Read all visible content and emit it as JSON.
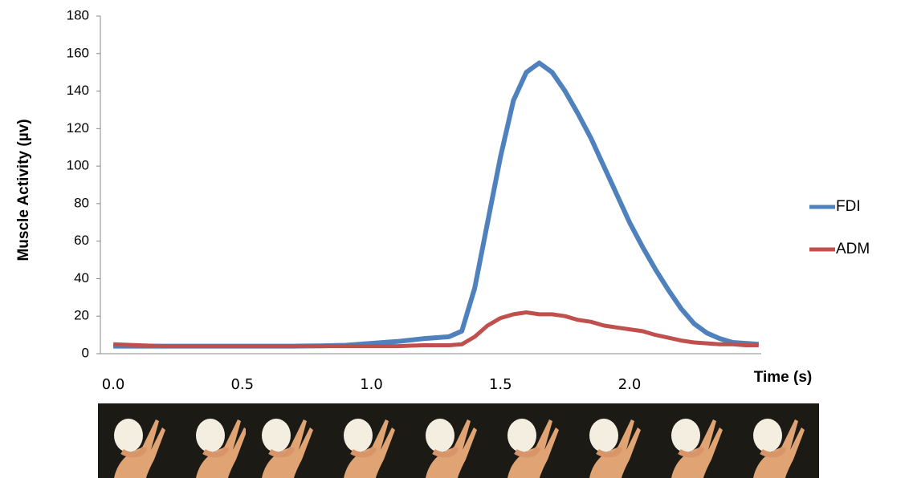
{
  "chart_data": {
    "type": "line",
    "y_label": "Muscle Activity (µv)",
    "x_label": "Time (s)",
    "x": [
      0,
      0.1,
      0.2,
      0.3,
      0.4,
      0.5,
      0.6,
      0.7,
      0.8,
      0.9,
      1.0,
      1.1,
      1.2,
      1.3,
      1.35,
      1.4,
      1.45,
      1.5,
      1.55,
      1.6,
      1.65,
      1.7,
      1.75,
      1.8,
      1.85,
      1.9,
      1.95,
      2.0,
      2.05,
      2.1,
      2.15,
      2.2,
      2.25,
      2.3,
      2.35,
      2.4,
      2.45,
      2.5
    ],
    "series": [
      {
        "name": "FDI",
        "color": "#4f81bd",
        "values": [
          4,
          4,
          4,
          4,
          4,
          4,
          4,
          4,
          4.2,
          4.5,
          5.5,
          6.5,
          8,
          9,
          12,
          35,
          70,
          105,
          135,
          150,
          155,
          150,
          140,
          128,
          115,
          100,
          85,
          70,
          57,
          45,
          34,
          24,
          16,
          11,
          8,
          6,
          5.5,
          5
        ]
      },
      {
        "name": "ADM",
        "color": "#c0504d",
        "values": [
          5,
          4.5,
          4,
          4,
          4,
          4,
          4,
          4,
          4,
          4,
          4,
          4,
          4.5,
          4.5,
          5,
          9,
          15,
          19,
          21,
          22,
          21,
          21,
          20,
          18,
          17,
          15,
          14,
          13,
          12,
          10,
          8.5,
          7,
          6,
          5.5,
          5,
          5,
          4.5,
          4.5
        ]
      }
    ],
    "xlim": [
      -0.05,
      2.51
    ],
    "xticks": [
      {
        "value": 0,
        "label": "0.0"
      },
      {
        "value": 0.5,
        "label": "0.5"
      },
      {
        "value": 1,
        "label": "1.0"
      },
      {
        "value": 1.5,
        "label": "1.5"
      },
      {
        "value": 2,
        "label": "2.0"
      }
    ],
    "ylim": [
      0,
      180
    ],
    "yticks": [
      0,
      20,
      40,
      60,
      80,
      100,
      120,
      140,
      160,
      180
    ],
    "grid": false,
    "legend": "right"
  }
}
